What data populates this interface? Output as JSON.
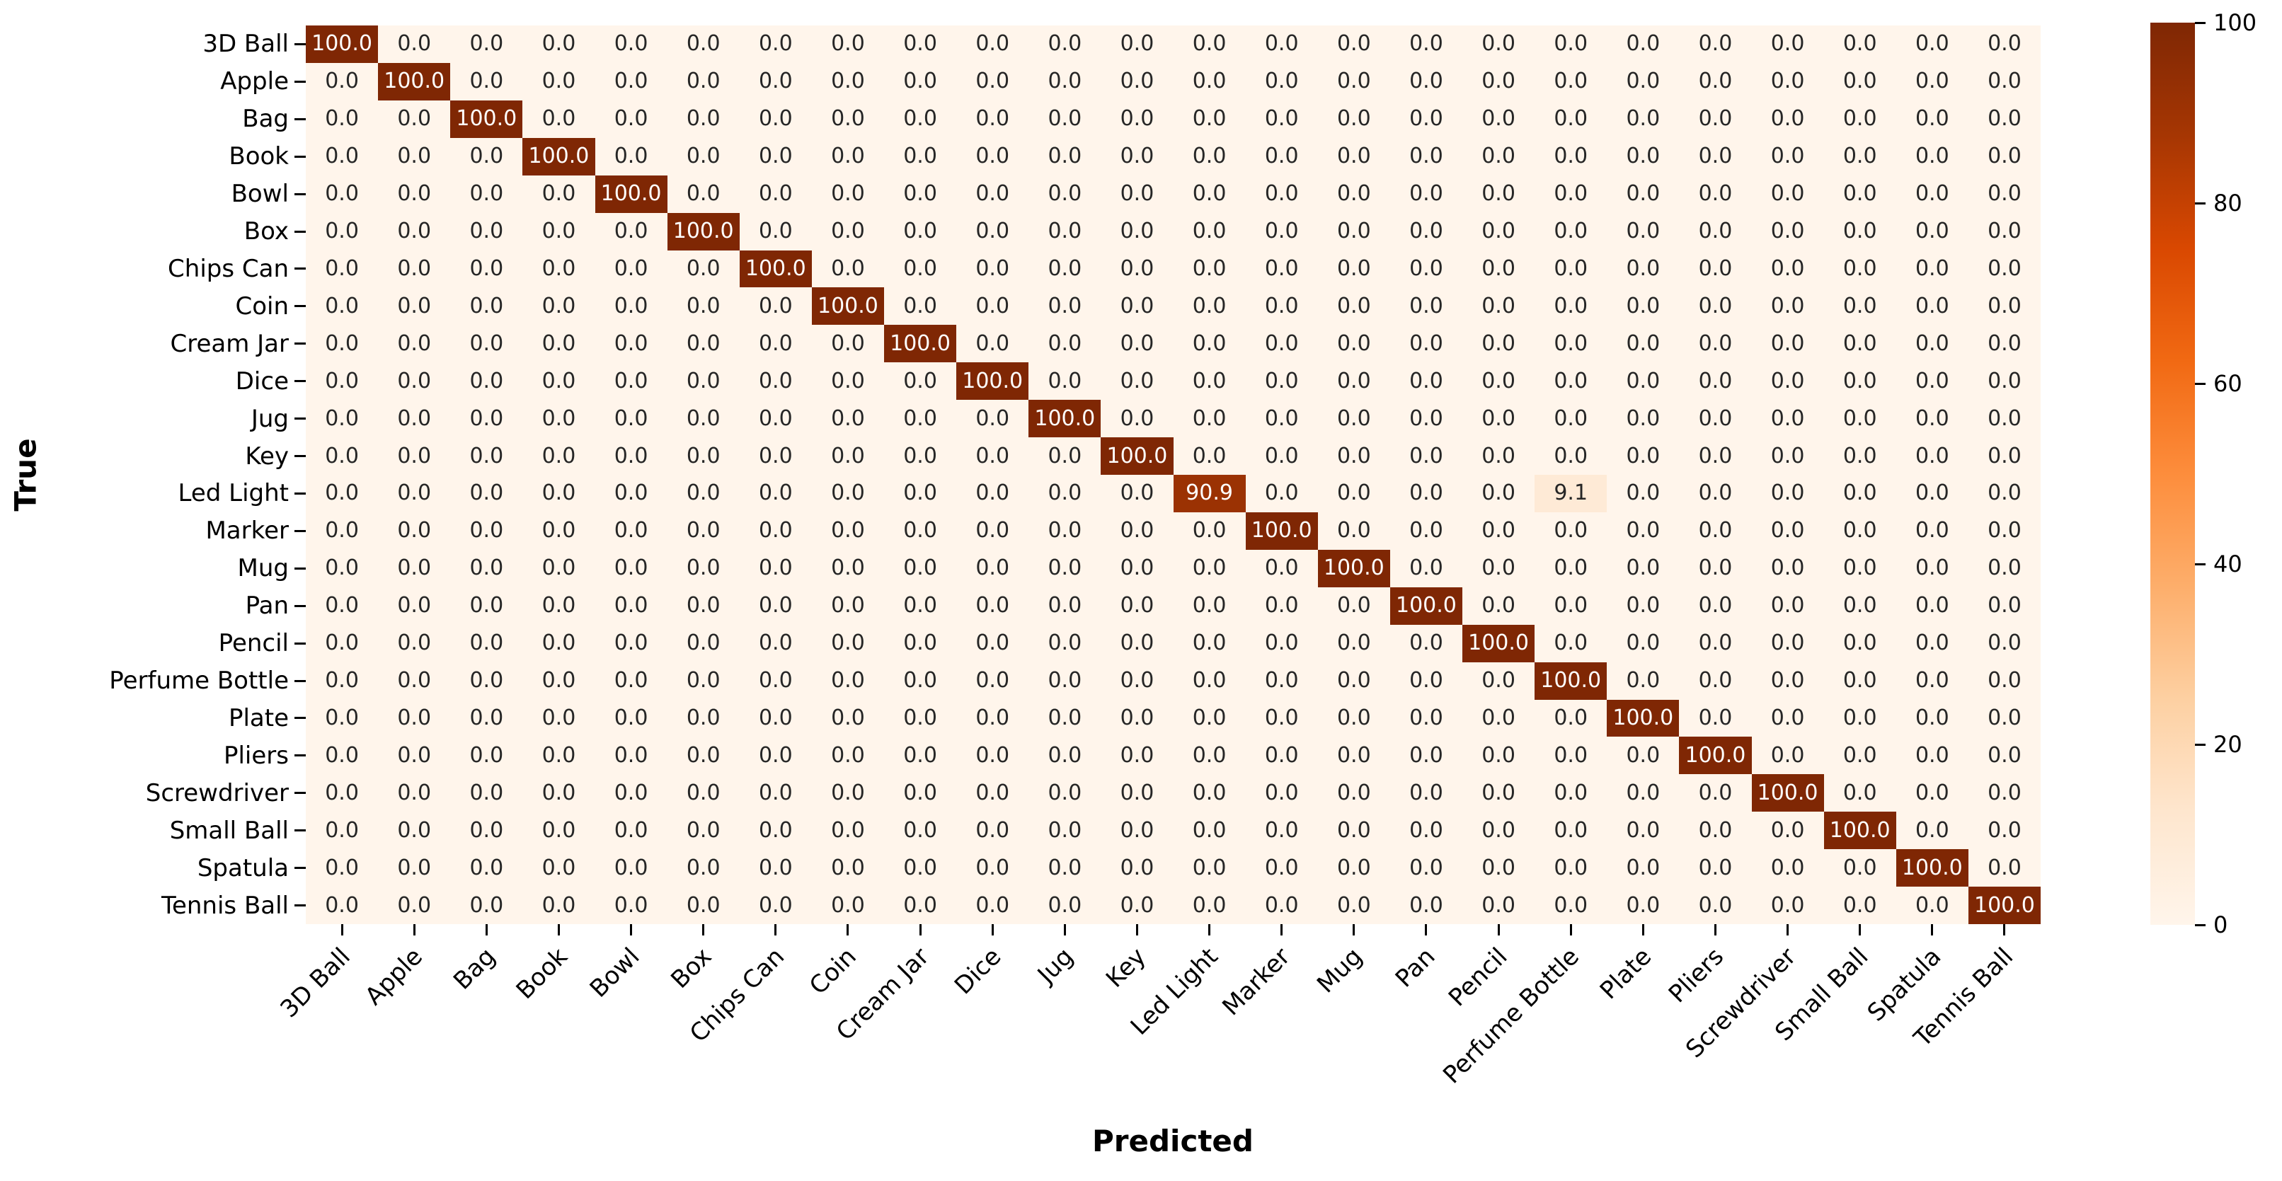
{
  "chart_data": {
    "type": "heatmap",
    "title": "",
    "xlabel": "Predicted",
    "ylabel": "True",
    "x_categories": [
      "3D Ball",
      "Apple",
      "Bag",
      "Book",
      "Bowl",
      "Box",
      "Chips Can",
      "Coin",
      "Cream Jar",
      "Dice",
      "Jug",
      "Key",
      "Led Light",
      "Marker",
      "Mug",
      "Pan",
      "Pencil",
      "Perfume Bottle",
      "Plate",
      "Pliers",
      "Screwdriver",
      "Small Ball",
      "Spatula",
      "Tennis Ball"
    ],
    "y_categories": [
      "3D Ball",
      "Apple",
      "Bag",
      "Book",
      "Bowl",
      "Box",
      "Chips Can",
      "Coin",
      "Cream Jar",
      "Dice",
      "Jug",
      "Key",
      "Led Light",
      "Marker",
      "Mug",
      "Pan",
      "Pencil",
      "Perfume Bottle",
      "Plate",
      "Pliers",
      "Screwdriver",
      "Small Ball",
      "Spatula",
      "Tennis Ball"
    ],
    "matrix": [
      [
        100,
        0,
        0,
        0,
        0,
        0,
        0,
        0,
        0,
        0,
        0,
        0,
        0,
        0,
        0,
        0,
        0,
        0,
        0,
        0,
        0,
        0,
        0,
        0
      ],
      [
        0,
        100,
        0,
        0,
        0,
        0,
        0,
        0,
        0,
        0,
        0,
        0,
        0,
        0,
        0,
        0,
        0,
        0,
        0,
        0,
        0,
        0,
        0,
        0
      ],
      [
        0,
        0,
        100,
        0,
        0,
        0,
        0,
        0,
        0,
        0,
        0,
        0,
        0,
        0,
        0,
        0,
        0,
        0,
        0,
        0,
        0,
        0,
        0,
        0
      ],
      [
        0,
        0,
        0,
        100,
        0,
        0,
        0,
        0,
        0,
        0,
        0,
        0,
        0,
        0,
        0,
        0,
        0,
        0,
        0,
        0,
        0,
        0,
        0,
        0
      ],
      [
        0,
        0,
        0,
        0,
        100,
        0,
        0,
        0,
        0,
        0,
        0,
        0,
        0,
        0,
        0,
        0,
        0,
        0,
        0,
        0,
        0,
        0,
        0,
        0
      ],
      [
        0,
        0,
        0,
        0,
        0,
        100,
        0,
        0,
        0,
        0,
        0,
        0,
        0,
        0,
        0,
        0,
        0,
        0,
        0,
        0,
        0,
        0,
        0,
        0
      ],
      [
        0,
        0,
        0,
        0,
        0,
        0,
        100,
        0,
        0,
        0,
        0,
        0,
        0,
        0,
        0,
        0,
        0,
        0,
        0,
        0,
        0,
        0,
        0,
        0
      ],
      [
        0,
        0,
        0,
        0,
        0,
        0,
        0,
        100,
        0,
        0,
        0,
        0,
        0,
        0,
        0,
        0,
        0,
        0,
        0,
        0,
        0,
        0,
        0,
        0
      ],
      [
        0,
        0,
        0,
        0,
        0,
        0,
        0,
        0,
        100,
        0,
        0,
        0,
        0,
        0,
        0,
        0,
        0,
        0,
        0,
        0,
        0,
        0,
        0,
        0
      ],
      [
        0,
        0,
        0,
        0,
        0,
        0,
        0,
        0,
        0,
        100,
        0,
        0,
        0,
        0,
        0,
        0,
        0,
        0,
        0,
        0,
        0,
        0,
        0,
        0
      ],
      [
        0,
        0,
        0,
        0,
        0,
        0,
        0,
        0,
        0,
        0,
        100,
        0,
        0,
        0,
        0,
        0,
        0,
        0,
        0,
        0,
        0,
        0,
        0,
        0
      ],
      [
        0,
        0,
        0,
        0,
        0,
        0,
        0,
        0,
        0,
        0,
        0,
        100,
        0,
        0,
        0,
        0,
        0,
        0,
        0,
        0,
        0,
        0,
        0,
        0
      ],
      [
        0,
        0,
        0,
        0,
        0,
        0,
        0,
        0,
        0,
        0,
        0,
        0,
        90.9,
        0,
        0,
        0,
        0,
        9.1,
        0,
        0,
        0,
        0,
        0,
        0
      ],
      [
        0,
        0,
        0,
        0,
        0,
        0,
        0,
        0,
        0,
        0,
        0,
        0,
        0,
        100,
        0,
        0,
        0,
        0,
        0,
        0,
        0,
        0,
        0,
        0
      ],
      [
        0,
        0,
        0,
        0,
        0,
        0,
        0,
        0,
        0,
        0,
        0,
        0,
        0,
        0,
        100,
        0,
        0,
        0,
        0,
        0,
        0,
        0,
        0,
        0
      ],
      [
        0,
        0,
        0,
        0,
        0,
        0,
        0,
        0,
        0,
        0,
        0,
        0,
        0,
        0,
        0,
        100,
        0,
        0,
        0,
        0,
        0,
        0,
        0,
        0
      ],
      [
        0,
        0,
        0,
        0,
        0,
        0,
        0,
        0,
        0,
        0,
        0,
        0,
        0,
        0,
        0,
        0,
        100,
        0,
        0,
        0,
        0,
        0,
        0,
        0
      ],
      [
        0,
        0,
        0,
        0,
        0,
        0,
        0,
        0,
        0,
        0,
        0,
        0,
        0,
        0,
        0,
        0,
        0,
        100,
        0,
        0,
        0,
        0,
        0,
        0
      ],
      [
        0,
        0,
        0,
        0,
        0,
        0,
        0,
        0,
        0,
        0,
        0,
        0,
        0,
        0,
        0,
        0,
        0,
        0,
        100,
        0,
        0,
        0,
        0,
        0
      ],
      [
        0,
        0,
        0,
        0,
        0,
        0,
        0,
        0,
        0,
        0,
        0,
        0,
        0,
        0,
        0,
        0,
        0,
        0,
        0,
        100,
        0,
        0,
        0,
        0
      ],
      [
        0,
        0,
        0,
        0,
        0,
        0,
        0,
        0,
        0,
        0,
        0,
        0,
        0,
        0,
        0,
        0,
        0,
        0,
        0,
        0,
        100,
        0,
        0,
        0
      ],
      [
        0,
        0,
        0,
        0,
        0,
        0,
        0,
        0,
        0,
        0,
        0,
        0,
        0,
        0,
        0,
        0,
        0,
        0,
        0,
        0,
        0,
        100,
        0,
        0
      ],
      [
        0,
        0,
        0,
        0,
        0,
        0,
        0,
        0,
        0,
        0,
        0,
        0,
        0,
        0,
        0,
        0,
        0,
        0,
        0,
        0,
        0,
        0,
        100,
        0
      ],
      [
        0,
        0,
        0,
        0,
        0,
        0,
        0,
        0,
        0,
        0,
        0,
        0,
        0,
        0,
        0,
        0,
        0,
        0,
        0,
        0,
        0,
        0,
        0,
        100
      ]
    ],
    "cell_value_decimals": 1,
    "colorbar": {
      "vmin": 0,
      "vmax": 100,
      "ticks": [
        0,
        20,
        40,
        60,
        80,
        100
      ],
      "tick_labels": [
        "0",
        "20",
        "40",
        "60",
        "80",
        "100"
      ],
      "position": "right"
    },
    "colormap": {
      "name": "Oranges",
      "stops": [
        {
          "pos": 0.0,
          "color": "#fff5eb"
        },
        {
          "pos": 0.125,
          "color": "#fee6ce"
        },
        {
          "pos": 0.25,
          "color": "#fdd0a2"
        },
        {
          "pos": 0.375,
          "color": "#fdae6b"
        },
        {
          "pos": 0.5,
          "color": "#fd8d3c"
        },
        {
          "pos": 0.625,
          "color": "#f16913"
        },
        {
          "pos": 0.75,
          "color": "#d94801"
        },
        {
          "pos": 0.875,
          "color": "#a63603"
        },
        {
          "pos": 1.0,
          "color": "#7f2704"
        }
      ]
    },
    "annotation": {
      "text_color_on_dark": "#ffffff",
      "text_color_on_light": "#262626",
      "light_text_threshold": 50
    },
    "axis_color": "#000000",
    "grid": false,
    "notable_cells": [
      {
        "row": "Led Light",
        "col": "Led Light",
        "value": 90.9
      },
      {
        "row": "Led Light",
        "col": "Perfume Bottle",
        "value": 9.1
      }
    ]
  }
}
